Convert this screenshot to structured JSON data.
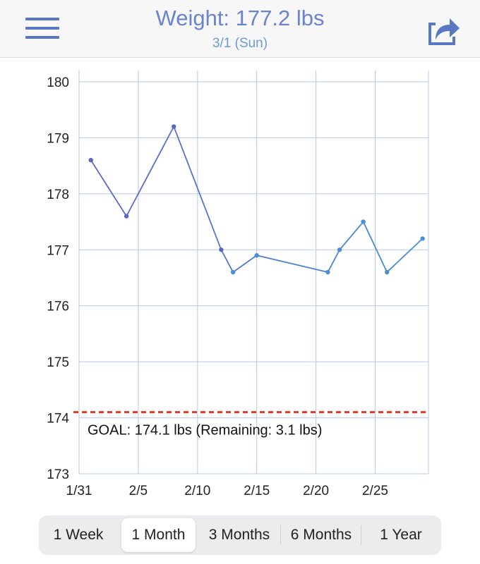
{
  "header": {
    "title": "Weight: 177.2 lbs",
    "subtitle": "3/1 (Sun)",
    "menu_icon": "hamburger-menu-icon",
    "share_icon": "share-icon"
  },
  "colors": {
    "accent": "#5a77c4",
    "line_start": "#5b66c4",
    "line_end": "#4a8fd4",
    "goal": "#e03a2e",
    "grid": "#b8c8e6"
  },
  "chart_data": {
    "type": "line",
    "x_labels": [
      "1/31",
      "2/5",
      "2/10",
      "2/15",
      "2/20",
      "2/25"
    ],
    "x_label_days": [
      0,
      5,
      10,
      15,
      20,
      25
    ],
    "x_range_days": [
      0,
      29.5
    ],
    "y_ticks": [
      173,
      174,
      175,
      176,
      177,
      178,
      179,
      180
    ],
    "ylim": [
      173,
      180
    ],
    "series": [
      {
        "name": "Weight",
        "points": [
          {
            "date": "2/1",
            "day": 1,
            "value": 178.6
          },
          {
            "date": "2/4",
            "day": 4,
            "value": 177.6
          },
          {
            "date": "2/8",
            "day": 8,
            "value": 179.2
          },
          {
            "date": "2/12",
            "day": 12,
            "value": 177.0
          },
          {
            "date": "2/13",
            "day": 13,
            "value": 176.6
          },
          {
            "date": "2/15",
            "day": 15,
            "value": 176.9
          },
          {
            "date": "2/21",
            "day": 21,
            "value": 176.6
          },
          {
            "date": "2/22",
            "day": 22,
            "value": 177.0
          },
          {
            "date": "2/24",
            "day": 24,
            "value": 177.5
          },
          {
            "date": "2/26",
            "day": 26,
            "value": 176.6
          },
          {
            "date": "3/1",
            "day": 29,
            "value": 177.2
          }
        ]
      }
    ],
    "goal": {
      "value": 174.1,
      "label": "GOAL: 174.1 lbs (Remaining: 3.1 lbs)"
    },
    "grid": true
  },
  "range_selector": {
    "options": [
      "1 Week",
      "1 Month",
      "3 Months",
      "6 Months",
      "1 Year"
    ],
    "selected": "1 Month"
  }
}
